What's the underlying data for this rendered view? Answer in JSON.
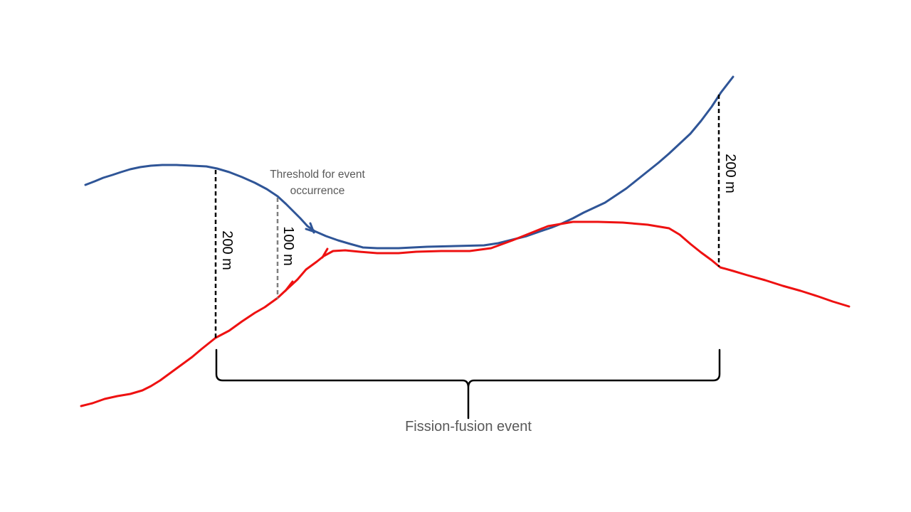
{
  "colors": {
    "individual_a": "#2f5597",
    "individual_b": "#ee1111",
    "distance_marker": "#000000",
    "threshold_marker": "#7f7f7f",
    "label_text": "#595959"
  },
  "labels": {
    "start_distance": "200 m",
    "threshold_distance": "100 m",
    "end_distance": "200 m",
    "threshold": "Threshold for event occurrence",
    "threshold_line1": "Threshold for event",
    "threshold_line2": "occurrence",
    "event": "Fission-fusion event"
  }
}
